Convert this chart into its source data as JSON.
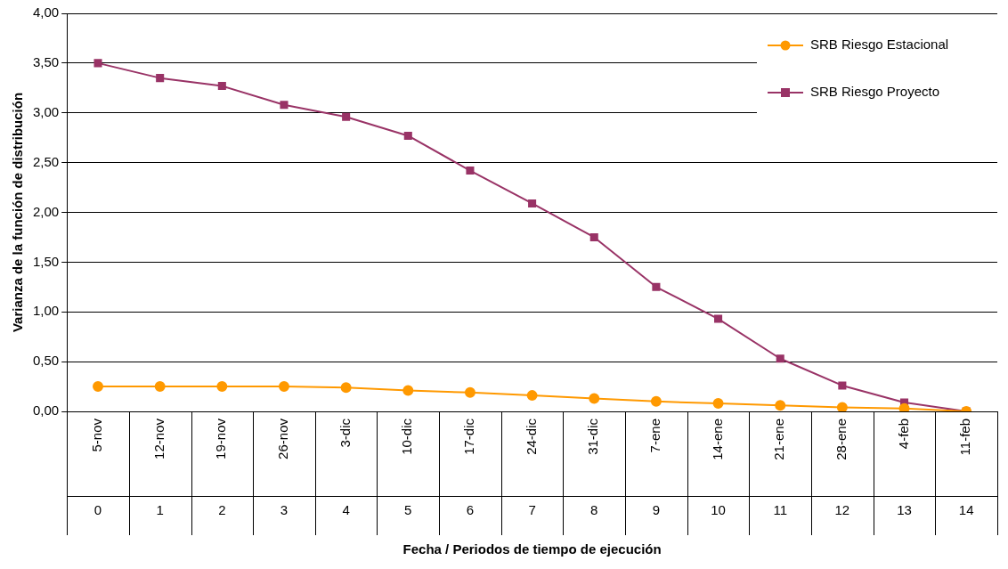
{
  "chart_data": {
    "type": "line",
    "xlabel": "Fecha / Periodos de tiempo de ejecución",
    "ylabel": "Varianza de la función de distribución",
    "categories": [
      "5-nov",
      "12-nov",
      "19-nov",
      "26-nov",
      "3-dic",
      "10-dic",
      "17-dic",
      "24-dic",
      "31-dic",
      "7-ene",
      "14-ene",
      "21-ene",
      "28-ene",
      "4-feb",
      "11-feb"
    ],
    "x2lim": [
      -0.5,
      14.5
    ],
    "x2ticks": [
      0,
      1,
      2,
      3,
      4,
      5,
      6,
      7,
      8,
      9,
      10,
      11,
      12,
      13,
      14
    ],
    "ylim": [
      0,
      4
    ],
    "yticks": [
      {
        "value": 0,
        "label": "0,00"
      },
      {
        "value": 0.5,
        "label": "0,50"
      },
      {
        "value": 1,
        "label": "1,00"
      },
      {
        "value": 1.5,
        "label": "1,50"
      },
      {
        "value": 2,
        "label": "2,00"
      },
      {
        "value": 2.5,
        "label": "2,50"
      },
      {
        "value": 3,
        "label": "3,00"
      },
      {
        "value": 3.5,
        "label": "3,50"
      },
      {
        "value": 4,
        "label": "4,00"
      }
    ],
    "grid": "y",
    "legend": "top right",
    "line_style": "solid",
    "series": [
      {
        "name": "SRB Riesgo Estacional",
        "color": "#ff9900",
        "marker": "circle",
        "values": [
          0.25,
          0.25,
          0.25,
          0.25,
          0.24,
          0.21,
          0.19,
          0.16,
          0.13,
          0.1,
          0.08,
          0.06,
          0.04,
          0.03,
          0
        ]
      },
      {
        "name": "SRB Riesgo Proyecto",
        "color": "#993366",
        "marker": "square",
        "values": [
          3.5,
          3.35,
          3.27,
          3.08,
          2.96,
          2.77,
          2.42,
          2.09,
          1.75,
          1.25,
          0.93,
          0.53,
          0.26,
          0.09,
          0
        ]
      }
    ]
  }
}
